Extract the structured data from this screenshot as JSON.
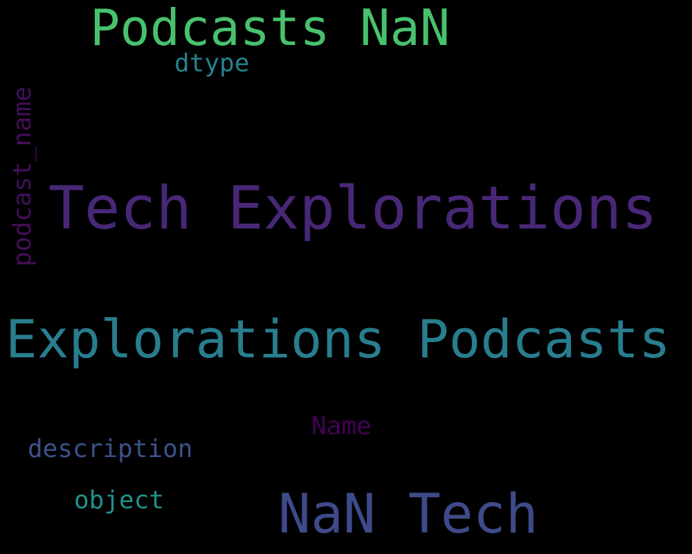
{
  "words": [
    {
      "text": "Podcasts NaN",
      "color": "#48c16e"
    },
    {
      "text": "dtype",
      "color": "#26828e"
    },
    {
      "text": "Tech Explorations",
      "color": "#482777"
    },
    {
      "text": "podcast_name",
      "color": "#440f5a"
    },
    {
      "text": "Explorations Podcasts",
      "color": "#287d8e"
    },
    {
      "text": "Name",
      "color": "#440154"
    },
    {
      "text": "description",
      "color": "#3b528b"
    },
    {
      "text": "object",
      "color": "#21918c"
    },
    {
      "text": "NaN Tech",
      "color": "#3e4a89"
    }
  ]
}
